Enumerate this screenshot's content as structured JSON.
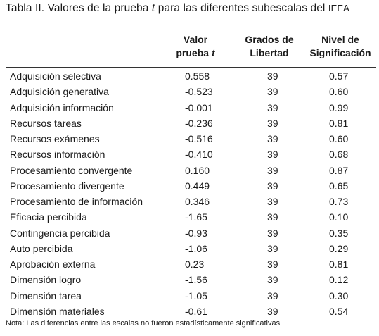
{
  "caption": {
    "prefix": "Tabla II. Valores de la prueba ",
    "t": "t",
    "middle": " para las diferentes subescalas del ",
    "suffix": "IEEA"
  },
  "headers": {
    "col1_line1": "Valor",
    "col1_line2_prefix": "prueba ",
    "col1_line2_t": "t",
    "col2_line1": "Grados de",
    "col2_line2": "Libertad",
    "col3_line1": "Nivel de",
    "col3_line2": "Significación"
  },
  "rows": [
    {
      "label": "Adquisición selectiva",
      "t": "0.558",
      "gl": "39",
      "ns": "0.57"
    },
    {
      "label": "Adquisición generativa",
      "t": "-0.523",
      "gl": "39",
      "ns": "0.60"
    },
    {
      "label": "Adquisición información",
      "t": "-0.001",
      "gl": "39",
      "ns": "0.99"
    },
    {
      "label": "Recursos tareas",
      "t": "-0.236",
      "gl": "39",
      "ns": "0.81"
    },
    {
      "label": "Recursos exámenes",
      "t": "-0.516",
      "gl": "39",
      "ns": "0.60"
    },
    {
      "label": "Recursos información",
      "t": "-0.410",
      "gl": "39",
      "ns": "0.68"
    },
    {
      "label": "Procesamiento convergente",
      "t": "0.160",
      "gl": "39",
      "ns": "0.87"
    },
    {
      "label": "Procesamiento divergente",
      "t": "0.449",
      "gl": "39",
      "ns": "0.65"
    },
    {
      "label": "Procesamiento de información",
      "t": "0.346",
      "gl": "39",
      "ns": "0.73"
    },
    {
      "label": "Eficacia percibida",
      "t": "-1.65",
      "gl": "39",
      "ns": "0.10"
    },
    {
      "label": "Contingencia percibida",
      "t": "-0.93",
      "gl": "39",
      "ns": "0.35"
    },
    {
      "label": "Auto percibida",
      "t": "-1.06",
      "gl": "39",
      "ns": "0.29"
    },
    {
      "label": "Aprobación externa",
      "t": "0.23",
      "gl": "39",
      "ns": "0.81"
    },
    {
      "label": "Dimensión logro",
      "t": "-1.56",
      "gl": "39",
      "ns": "0.12"
    },
    {
      "label": "Dimensión tarea",
      "t": "-1.05",
      "gl": "39",
      "ns": "0.30"
    },
    {
      "label": "Dimensión materiales",
      "t": "-0.61",
      "gl": "39",
      "ns": "0.54"
    }
  ],
  "note": "Nota: Las diferencias entre las escalas no fueron estadísticamente significativas"
}
